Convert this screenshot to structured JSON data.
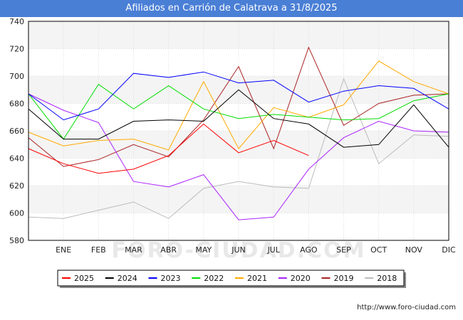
{
  "title": "Afiliados en Carrión de Calatrava a 31/8/2025",
  "credit": "http://www.foro-ciudad.com",
  "watermark": "FORO-CIUDAD.COM",
  "chart_data": {
    "type": "line",
    "title": "Afiliados en Carrión de Calatrava a 31/8/2025",
    "xlabel": "",
    "ylabel": "",
    "x": [
      "",
      "ENE",
      "FEB",
      "MAR",
      "ABR",
      "MAY",
      "JUN",
      "JUL",
      "AGO",
      "SEP",
      "OCT",
      "NOV",
      "DIC"
    ],
    "ylim": [
      580,
      740
    ],
    "yticks": [
      580,
      600,
      620,
      640,
      660,
      680,
      700,
      720,
      740
    ],
    "grid": true,
    "legend_position": "bottom",
    "series": [
      {
        "name": "2025",
        "color": "#ff0000",
        "values": [
          647,
          636,
          629,
          632,
          642,
          665,
          644,
          653,
          642,
          null,
          null,
          null,
          null
        ]
      },
      {
        "name": "2024",
        "color": "#000000",
        "values": [
          676,
          654,
          654,
          667,
          668,
          667,
          690,
          669,
          665,
          648,
          650,
          679,
          648
        ]
      },
      {
        "name": "2023",
        "color": "#0000ff",
        "values": [
          687,
          668,
          676,
          702,
          699,
          703,
          695,
          697,
          681,
          689,
          693,
          691,
          676
        ]
      },
      {
        "name": "2022",
        "color": "#00dd00",
        "values": [
          687,
          654,
          694,
          676,
          693,
          676,
          669,
          672,
          670,
          668,
          669,
          682,
          687
        ]
      },
      {
        "name": "2021",
        "color": "#ffaa00",
        "values": [
          659,
          649,
          653,
          654,
          646,
          696,
          647,
          677,
          670,
          679,
          711,
          696,
          687
        ]
      },
      {
        "name": "2020",
        "color": "#aa22ff",
        "values": [
          687,
          675,
          666,
          623,
          619,
          628,
          595,
          597,
          632,
          655,
          667,
          660,
          659
        ]
      },
      {
        "name": "2019",
        "color": "#aa2222",
        "values": [
          655,
          634,
          639,
          650,
          641,
          668,
          707,
          647,
          721,
          664,
          680,
          686,
          687
        ]
      },
      {
        "name": "2018",
        "color": "#bbbbbb",
        "values": [
          597,
          596,
          602,
          608,
          596,
          618,
          623,
          619,
          618,
          698,
          636,
          657,
          656
        ]
      }
    ]
  }
}
